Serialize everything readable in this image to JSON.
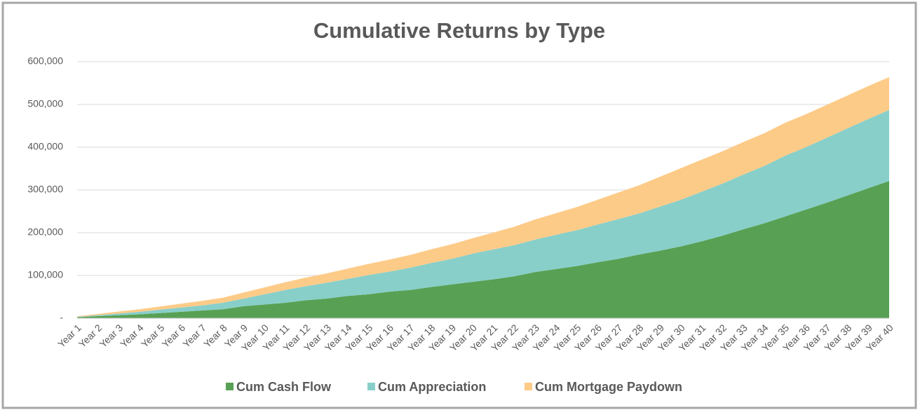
{
  "chart_data": {
    "type": "stacked-area",
    "title": "Cumulative Returns by Type",
    "categories": [
      "Year 1",
      "Year 2",
      "Year 3",
      "Year 4",
      "Year 5",
      "Year 6",
      "Year 7",
      "Year 8",
      "Year 9",
      "Year 10",
      "Year 11",
      "Year 12",
      "Year 13",
      "Year 14",
      "Year 15",
      "Year 16",
      "Year 17",
      "Year 18",
      "Year 19",
      "Year 20",
      "Year 21",
      "Year 22",
      "Year 23",
      "Year 24",
      "Year 25",
      "Year 26",
      "Year 27",
      "Year 28",
      "Year 29",
      "Year 30",
      "Year 31",
      "Year 32",
      "Year 33",
      "Year 34",
      "Year 35",
      "Year 36",
      "Year 37",
      "Year 38",
      "Year 39",
      "Year 40"
    ],
    "series": [
      {
        "name": "Cum Cash Flow",
        "color": "#58a154",
        "values": [
          2000,
          5000,
          7000,
          9000,
          12000,
          15000,
          18000,
          21000,
          28000,
          32000,
          36000,
          42000,
          46000,
          52000,
          56000,
          62000,
          66000,
          73000,
          79000,
          85000,
          91000,
          98000,
          108000,
          115000,
          122000,
          131000,
          139000,
          149000,
          158000,
          168000,
          180000,
          193000,
          208000,
          222000,
          238000,
          254000,
          270000,
          287000,
          304000,
          321000
        ]
      },
      {
        "name": "Cum Appreciation",
        "color": "#88cfca",
        "values": [
          1000,
          2000,
          4000,
          6000,
          8000,
          10000,
          12000,
          15000,
          18000,
          24000,
          30000,
          33000,
          37000,
          40000,
          45000,
          47000,
          52000,
          56000,
          60000,
          66000,
          70000,
          73000,
          76000,
          80000,
          84000,
          88000,
          93000,
          96000,
          103000,
          109000,
          116000,
          122000,
          128000,
          134000,
          142000,
          146000,
          152000,
          157000,
          162000,
          166000
        ]
      },
      {
        "name": "Cum Mortgage Paydown",
        "color": "#fdcb88",
        "values": [
          1500,
          3000,
          4500,
          6000,
          7500,
          9000,
          10500,
          12000,
          14000,
          16000,
          18000,
          20000,
          22000,
          24000,
          26000,
          28000,
          30000,
          32000,
          34000,
          36000,
          39500,
          43000,
          47000,
          50500,
          54000,
          58000,
          62000,
          66000,
          70000,
          74000,
          75000,
          75500,
          76000,
          76500,
          77000,
          77000,
          77000,
          77000,
          77000,
          77000
        ]
      }
    ],
    "ylim": [
      0,
      600000
    ],
    "yticks": [
      {
        "value": 0,
        "label": "-"
      },
      {
        "value": 100000,
        "label": "100,000"
      },
      {
        "value": 200000,
        "label": "200,000"
      },
      {
        "value": 300000,
        "label": "300,000"
      },
      {
        "value": 400000,
        "label": "400,000"
      },
      {
        "value": 500000,
        "label": "500,000"
      },
      {
        "value": 600000,
        "label": "600,000"
      }
    ],
    "grid": true
  }
}
